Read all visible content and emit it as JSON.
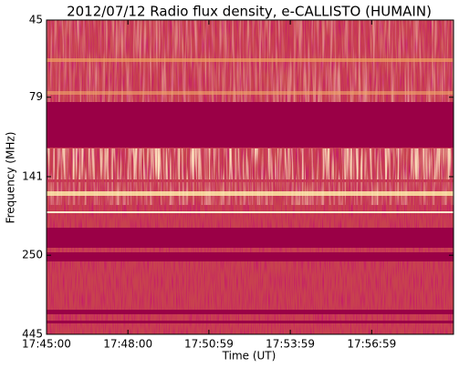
{
  "chart_data": {
    "type": "spectrogram",
    "title": "2012/07/12  Radio flux density, e-CALLISTO (HUMAIN)",
    "x_label": "Time (UT)",
    "y_label": "Frequency (MHz)",
    "xlim": [
      63900,
      64800
    ],
    "xticks": [
      {
        "value": 63900,
        "label": "17:45:00"
      },
      {
        "value": 64080,
        "label": "17:48:00"
      },
      {
        "value": 64259,
        "label": "17:50:59"
      },
      {
        "value": 64439,
        "label": "17:53:59"
      },
      {
        "value": 64619,
        "label": "17:56:59"
      }
    ],
    "ylim": [
      445,
      45
    ],
    "y_scale": "log",
    "yticks": [
      45,
      79,
      141,
      250,
      445
    ]
  }
}
